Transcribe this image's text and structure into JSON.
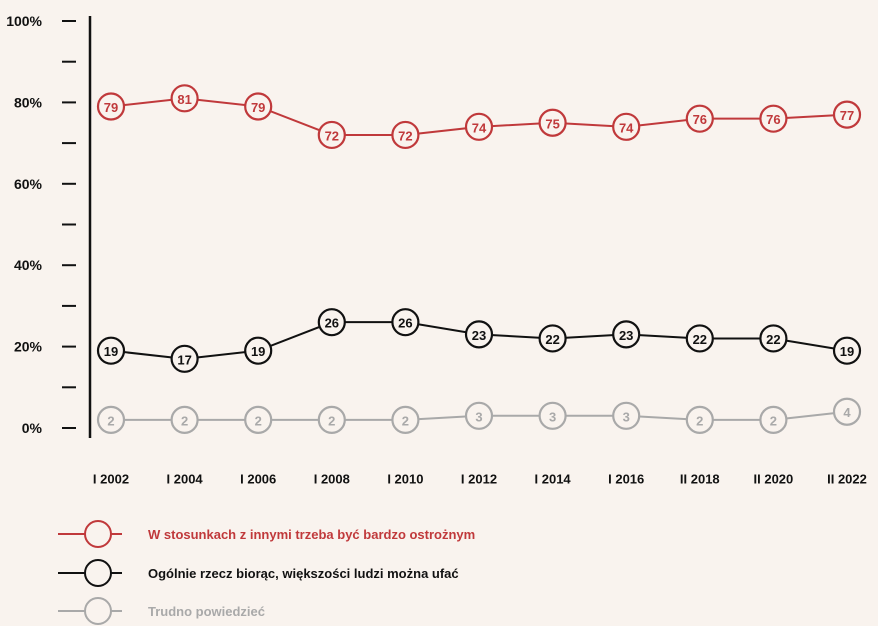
{
  "chart_data": {
    "type": "line",
    "title": "",
    "xlabel": "",
    "ylabel": "",
    "categories": [
      "I 2002",
      "I 2004",
      "I 2006",
      "I 2008",
      "I 2010",
      "I 2012",
      "I 2014",
      "I 2016",
      "II 2018",
      "II 2020",
      "II 2022"
    ],
    "ylim": [
      0,
      100
    ],
    "yticks": [
      {
        "value": 100,
        "label": "100%"
      },
      {
        "value": 90,
        "label": ""
      },
      {
        "value": 80,
        "label": "80%"
      },
      {
        "value": 70,
        "label": ""
      },
      {
        "value": 60,
        "label": "60%"
      },
      {
        "value": 50,
        "label": ""
      },
      {
        "value": 40,
        "label": "40%"
      },
      {
        "value": 30,
        "label": ""
      },
      {
        "value": 20,
        "label": "20%"
      },
      {
        "value": 10,
        "label": ""
      },
      {
        "value": 0,
        "label": "0%"
      }
    ],
    "grid": false,
    "legend_position": "bottom-left",
    "series": [
      {
        "name": "W stosunkach z innymi trzeba być bardzo ostrożnym",
        "color": "#c0393b",
        "values": [
          79,
          81,
          79,
          72,
          72,
          74,
          75,
          74,
          76,
          76,
          77
        ]
      },
      {
        "name": "Ogólnie rzecz biorąc, większości ludzi można ufać",
        "color": "#111111",
        "values": [
          19,
          17,
          19,
          26,
          26,
          23,
          22,
          23,
          22,
          22,
          19
        ]
      },
      {
        "name": "Trudno powiedzieć",
        "color": "#a9a9a9",
        "values": [
          2,
          2,
          2,
          2,
          2,
          3,
          3,
          3,
          2,
          2,
          4
        ]
      }
    ]
  }
}
